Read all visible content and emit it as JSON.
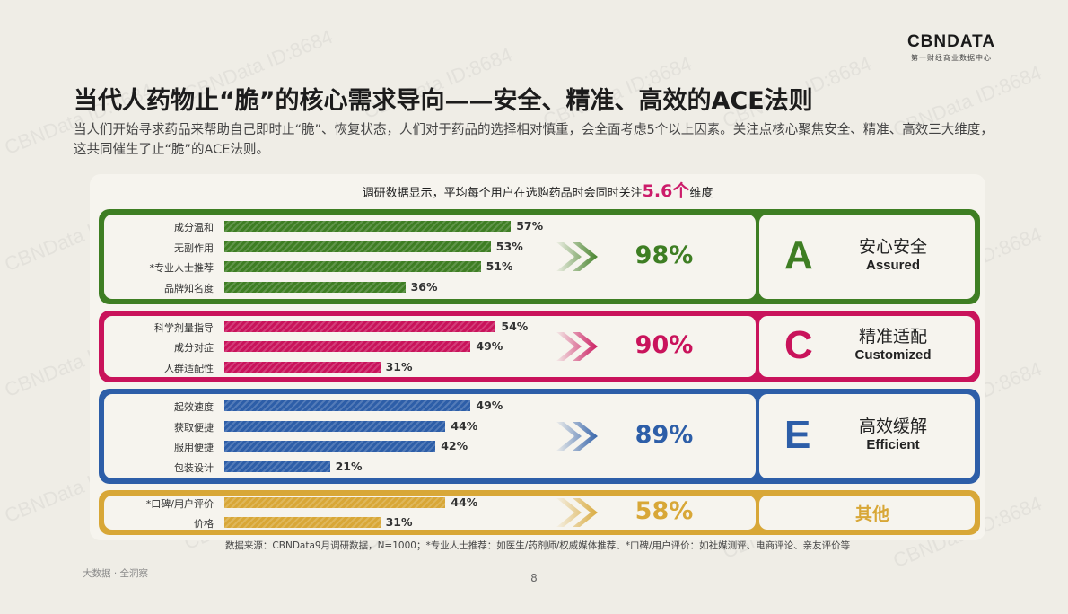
{
  "logo": {
    "main": "CBNDATA",
    "sub": "第一财经商业数据中心"
  },
  "title": "当代人药物止“脆”的核心需求导向——安全、精准、高效的ACE法则",
  "subtitle": "当人们开始寻求药品来帮助自己即时止“脆”、恢复状态，人们对于药品的选择相对慎重，会全面考虑5个以上因素。关注点核心聚焦安全、精准、高效三大维度，这共同催生了止“脆”的ACE法则。",
  "panel_header": {
    "prefix": "调研数据显示，平均每个用户在选购药品时会同时关注",
    "highlight": "5.6个",
    "suffix": "维度"
  },
  "colors": {
    "green": "#3e7e23",
    "magenta": "#c9135b",
    "blue": "#2d5ea8",
    "gold": "#d8a737"
  },
  "chart_data": {
    "type": "bar",
    "unit": "%",
    "xlim": [
      0,
      100
    ],
    "groups": [
      {
        "key": "A",
        "label_cn": "安心安全",
        "label_en": "Assured",
        "total": "98%",
        "color": "#3e7e23",
        "items": [
          {
            "label": "成分温和",
            "value": 57,
            "display": "57%"
          },
          {
            "label": "无副作用",
            "value": 53,
            "display": "53%"
          },
          {
            "label": "*专业人士推荐",
            "value": 51,
            "display": "51%"
          },
          {
            "label": "品牌知名度",
            "value": 36,
            "display": "36%"
          }
        ]
      },
      {
        "key": "C",
        "label_cn": "精准适配",
        "label_en": "Customized",
        "total": "90%",
        "color": "#c9135b",
        "items": [
          {
            "label": "科学剂量指导",
            "value": 54,
            "display": "54%"
          },
          {
            "label": "成分对症",
            "value": 49,
            "display": "49%"
          },
          {
            "label": "人群适配性",
            "value": 31,
            "display": "31%"
          }
        ]
      },
      {
        "key": "E",
        "label_cn": "高效缓解",
        "label_en": "Efficient",
        "total": "89%",
        "color": "#2d5ea8",
        "items": [
          {
            "label": "起效速度",
            "value": 49,
            "display": "49%"
          },
          {
            "label": "获取便捷",
            "value": 44,
            "display": "44%"
          },
          {
            "label": "服用便捷",
            "value": 42,
            "display": "42%"
          },
          {
            "label": "包装设计",
            "value": 21,
            "display": "21%"
          }
        ]
      },
      {
        "key": "",
        "label_cn": "其他",
        "label_en": "",
        "total": "58%",
        "color": "#d8a737",
        "items": [
          {
            "label": "*口碑/用户评价",
            "value": 44,
            "display": "44%"
          },
          {
            "label": "价格",
            "value": 31,
            "display": "31%"
          }
        ]
      }
    ]
  },
  "footnote": "数据来源：CBNData9月调研数据，N=1000；*专业人士推荐：如医生/药剂师/权威媒体推荐、*口碑/用户评价：如社媒测评、电商评论、亲友评价等",
  "footer_left": "大数据 · 全洞察",
  "page_number": "8",
  "watermark": "CBNData ID:8684"
}
